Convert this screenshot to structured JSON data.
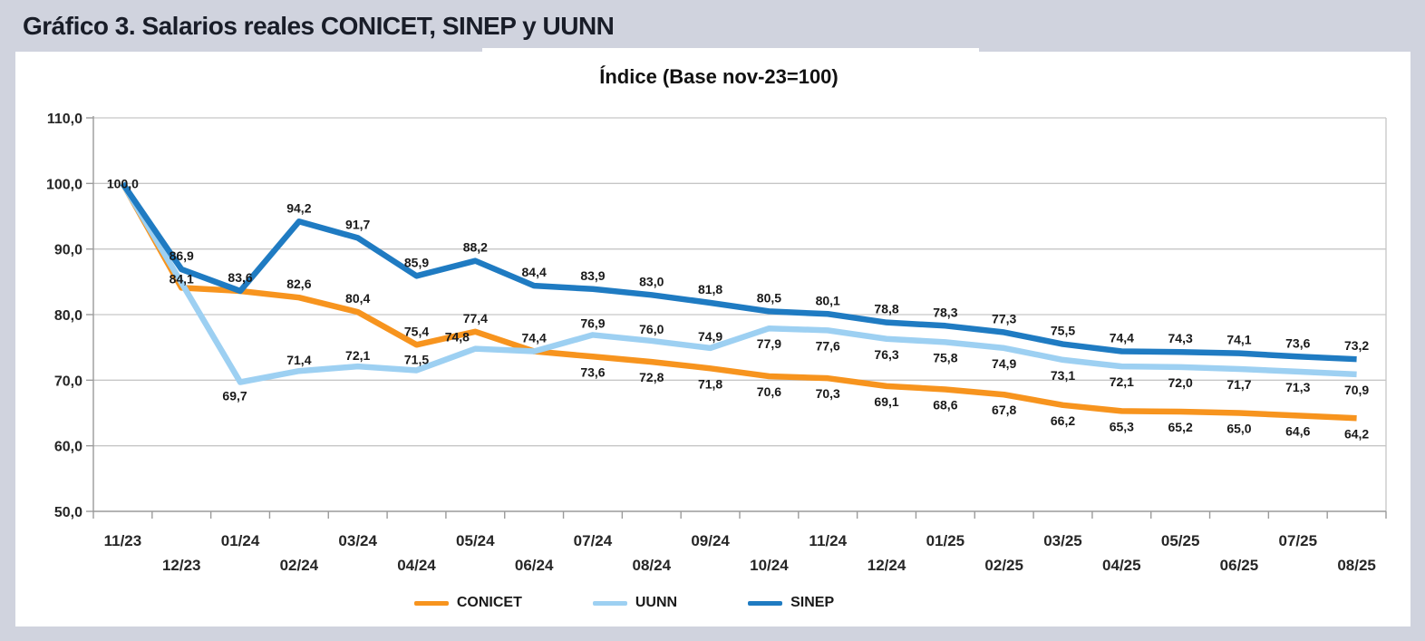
{
  "header": {
    "title": "Gráfico 3. Salarios reales CONICET, SINEP y UUNN"
  },
  "chart_data": {
    "type": "line",
    "title": "Índice (Base nov-23=100)",
    "categories": [
      "11/23",
      "12/23",
      "01/24",
      "02/24",
      "03/24",
      "04/24",
      "05/24",
      "06/24",
      "07/24",
      "08/24",
      "09/24",
      "10/24",
      "11/24",
      "12/24",
      "01/25",
      "02/25",
      "03/25",
      "04/25",
      "05/25",
      "06/25",
      "07/25",
      "08/25"
    ],
    "series": [
      {
        "name": "CONICET",
        "color": "#F7941E",
        "values": [
          100.0,
          84.1,
          83.6,
          82.6,
          80.4,
          75.4,
          77.4,
          74.4,
          73.6,
          72.8,
          71.8,
          70.6,
          70.3,
          69.1,
          68.6,
          67.8,
          66.2,
          65.3,
          65.2,
          65.0,
          64.6,
          64.2
        ]
      },
      {
        "name": "UUNN",
        "color": "#9DD0F2",
        "values": [
          100.0,
          null,
          69.7,
          71.4,
          72.1,
          71.5,
          74.8,
          74.4,
          76.9,
          76.0,
          74.9,
          77.9,
          77.6,
          76.3,
          75.8,
          74.9,
          73.1,
          72.1,
          72.0,
          71.7,
          71.3,
          70.9
        ]
      },
      {
        "name": "SINEP",
        "color": "#1F7BC2",
        "values": [
          100.0,
          86.9,
          83.6,
          94.2,
          91.7,
          85.9,
          88.2,
          84.4,
          83.9,
          83.0,
          81.8,
          80.5,
          80.1,
          78.8,
          78.3,
          77.3,
          75.5,
          74.4,
          74.3,
          74.1,
          73.6,
          73.2
        ]
      }
    ],
    "ylim": [
      50,
      110
    ],
    "y_tick_values": [
      110,
      100,
      90,
      80,
      70,
      60,
      50
    ],
    "y_tick_labels": [
      "110,0",
      "100,0",
      "90,0",
      "80,0",
      "70,0",
      "60,0",
      "50,0"
    ],
    "grid": true,
    "legend_position": "bottom",
    "decimal_separator": ","
  },
  "colors": {
    "page_bg": "#d0d3de",
    "panel_bg": "#ffffff",
    "gridline": "#c6c6c6",
    "axis": "#9b9b9b",
    "data_label": "#1a1a1a",
    "header_text": "#191d28"
  }
}
